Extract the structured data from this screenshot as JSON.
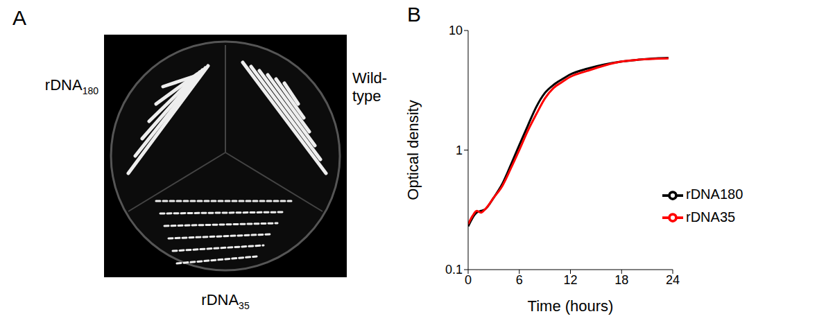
{
  "photo": {
    "letter": "A",
    "labels": [
      {
        "text": "rDNA",
        "sub": "180"
      },
      {
        "text": "Wild-type"
      },
      {
        "text": "rDNA",
        "sub": "35"
      }
    ]
  },
  "chart_data": {
    "letter": "B",
    "type": "line",
    "xlabel": "Time (hours)",
    "ylabel": "Optical density",
    "x": [
      0,
      0.5,
      1,
      1.5,
      2,
      3,
      4,
      5,
      6,
      7,
      8,
      9,
      10,
      11,
      12,
      14,
      16,
      18,
      20,
      22,
      23.5
    ],
    "xlim": [
      0,
      24
    ],
    "xticks": [
      0,
      6,
      12,
      18,
      24
    ],
    "ylim": [
      0.1,
      10
    ],
    "yticks": [
      0.1,
      1,
      10
    ],
    "log": "y",
    "legend": "lower right",
    "series": [
      {
        "name": "rDNA180",
        "color": "#000000",
        "values": [
          0.23,
          0.27,
          0.3,
          0.31,
          0.32,
          0.4,
          0.52,
          0.75,
          1.1,
          1.6,
          2.3,
          3.0,
          3.5,
          3.9,
          4.3,
          4.8,
          5.2,
          5.5,
          5.7,
          5.85,
          5.9
        ]
      },
      {
        "name": "rDNA35",
        "color": "#ff0000",
        "values": [
          0.24,
          0.28,
          0.31,
          0.3,
          0.32,
          0.4,
          0.5,
          0.7,
          1.0,
          1.45,
          2.0,
          2.7,
          3.3,
          3.7,
          4.1,
          4.6,
          5.1,
          5.5,
          5.7,
          5.8,
          5.85
        ]
      }
    ]
  }
}
